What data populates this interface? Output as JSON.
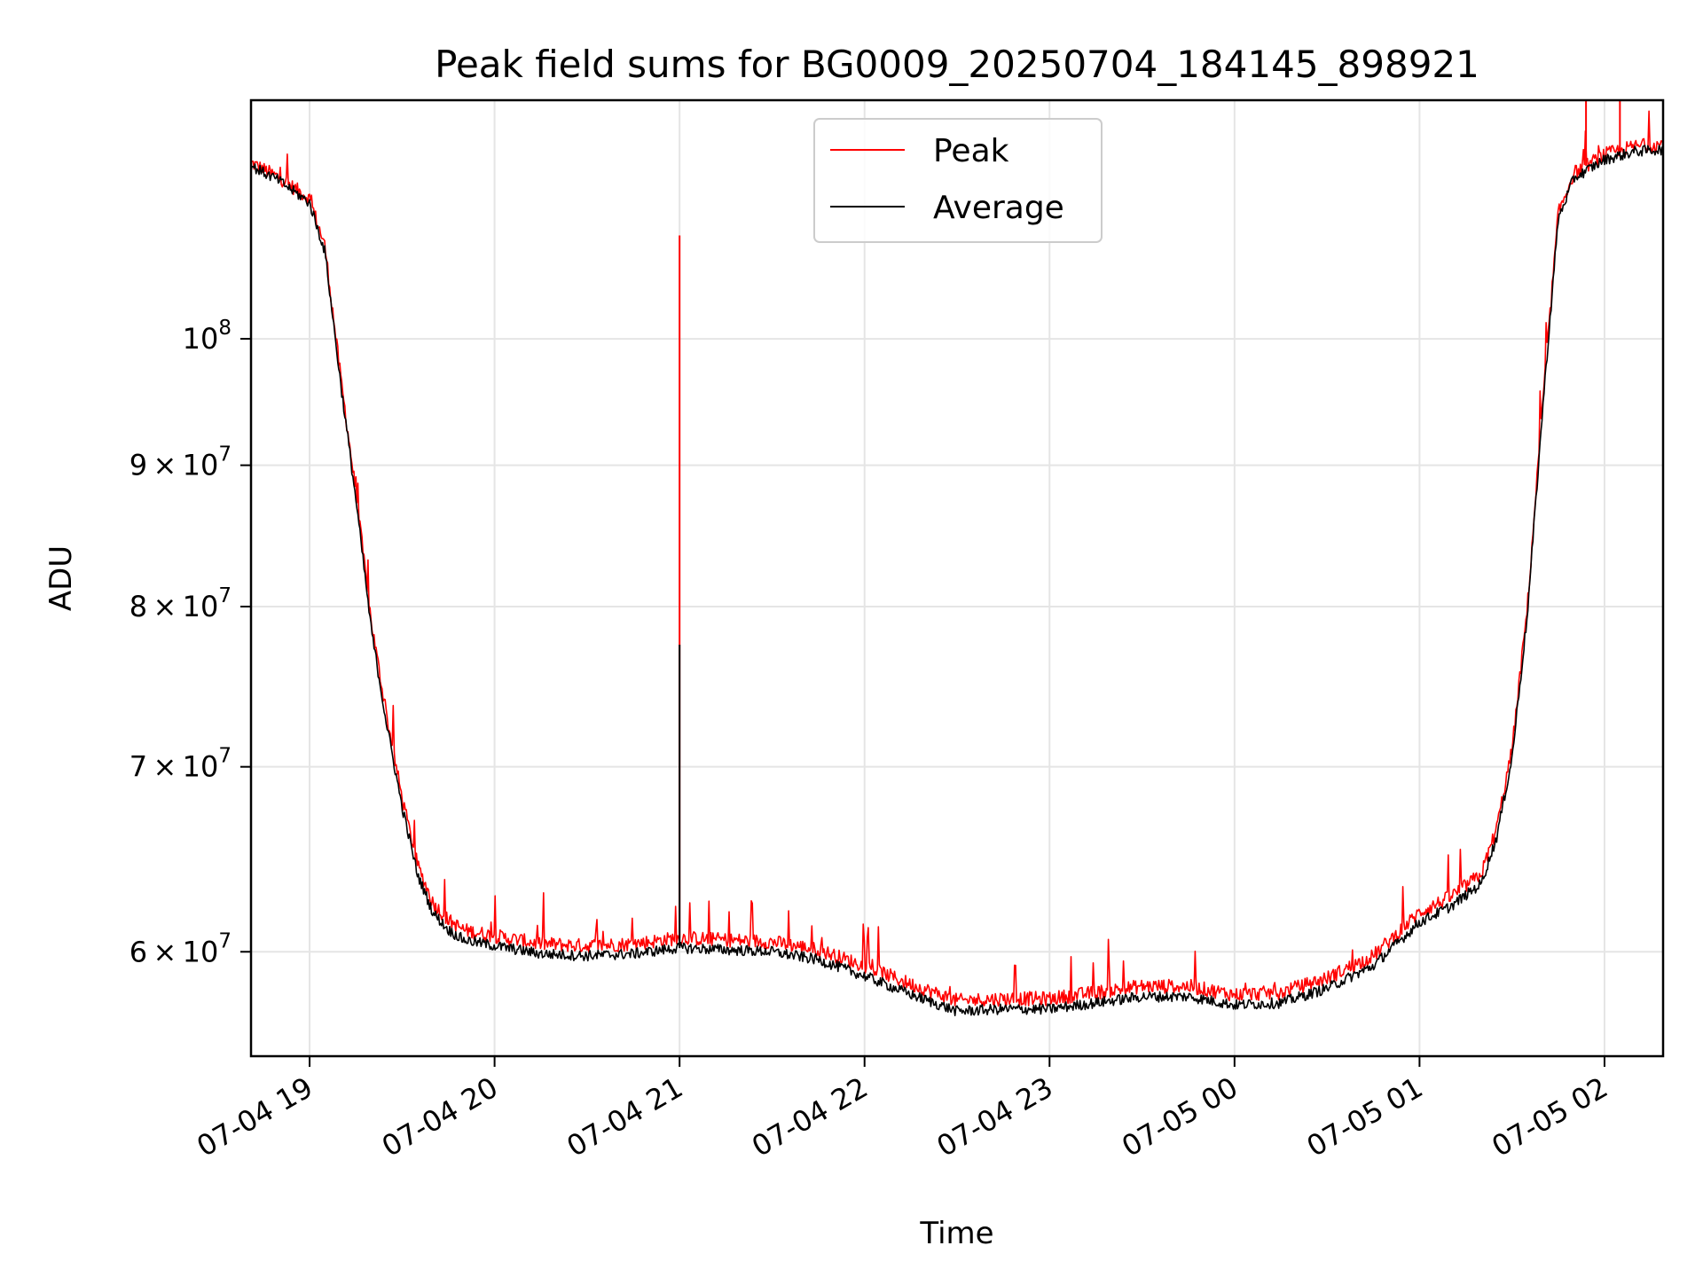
{
  "chart_data": {
    "type": "line",
    "title": "Peak field sums for BG0009_20250704_184145_898921",
    "xlabel": "Time",
    "ylabel": "ADU",
    "yscale": "log",
    "grid": true,
    "legend_position": "top-center",
    "xlim": [
      "2025-07-04 18:41",
      "2025-07-05 02:19"
    ],
    "ylim": [
      55000000,
      122000000
    ],
    "x_ticks": [
      {
        "t": "2025-07-04 19:00",
        "label": "07-04 19"
      },
      {
        "t": "2025-07-04 20:00",
        "label": "07-04 20"
      },
      {
        "t": "2025-07-04 21:00",
        "label": "07-04 21"
      },
      {
        "t": "2025-07-04 22:00",
        "label": "07-04 22"
      },
      {
        "t": "2025-07-04 23:00",
        "label": "07-04 23"
      },
      {
        "t": "2025-07-05 00:00",
        "label": "07-05 00"
      },
      {
        "t": "2025-07-05 01:00",
        "label": "07-05 01"
      },
      {
        "t": "2025-07-05 02:00",
        "label": "07-05 02"
      }
    ],
    "y_ticks": [
      {
        "value": 60000000,
        "mantissa": "6",
        "exp": "7"
      },
      {
        "value": 70000000,
        "mantissa": "7",
        "exp": "7"
      },
      {
        "value": 80000000,
        "mantissa": "8",
        "exp": "7"
      },
      {
        "value": 90000000,
        "mantissa": "9",
        "exp": "7"
      },
      {
        "value": 100000000,
        "mantissa": "",
        "exp": "8"
      }
    ],
    "series": [
      {
        "name": "Peak",
        "color": "#ff0000",
        "x": [
          "2025-07-04 18:41",
          "2025-07-04 18:50",
          "2025-07-04 19:00",
          "2025-07-04 19:05",
          "2025-07-04 19:10",
          "2025-07-04 19:15",
          "2025-07-04 19:20",
          "2025-07-04 19:25",
          "2025-07-04 19:30",
          "2025-07-04 19:35",
          "2025-07-04 19:40",
          "2025-07-04 19:45",
          "2025-07-04 19:50",
          "2025-07-04 20:00",
          "2025-07-04 20:15",
          "2025-07-04 20:30",
          "2025-07-04 20:45",
          "2025-07-04 21:00",
          "2025-07-04 21:15",
          "2025-07-04 21:30",
          "2025-07-04 21:45",
          "2025-07-04 22:00",
          "2025-07-04 22:15",
          "2025-07-04 22:30",
          "2025-07-04 22:45",
          "2025-07-04 23:00",
          "2025-07-04 23:15",
          "2025-07-04 23:30",
          "2025-07-04 23:45",
          "2025-07-05 00:00",
          "2025-07-05 00:15",
          "2025-07-05 00:30",
          "2025-07-05 00:45",
          "2025-07-05 01:00",
          "2025-07-05 01:10",
          "2025-07-05 01:20",
          "2025-07-05 01:25",
          "2025-07-05 01:30",
          "2025-07-05 01:35",
          "2025-07-05 01:40",
          "2025-07-05 01:45",
          "2025-07-05 01:50",
          "2025-07-05 02:00",
          "2025-07-05 02:10",
          "2025-07-05 02:19"
        ],
        "y": [
          115800000,
          114400000,
          112400000,
          108000000,
          97000000,
          88000000,
          79000000,
          73000000,
          68200000,
          64500000,
          62500000,
          61600000,
          61100000,
          60800000,
          60400000,
          60300000,
          60400000,
          60700000,
          60600000,
          60500000,
          60100000,
          59300000,
          58400000,
          57600000,
          57700000,
          57700000,
          58000000,
          58300000,
          58300000,
          57900000,
          58000000,
          58700000,
          59800000,
          62000000,
          62800000,
          64000000,
          66500000,
          71000000,
          80000000,
          95000000,
          111000000,
          114800000,
          116600000,
          117400000,
          117600000
        ]
      },
      {
        "name": "Average",
        "color": "#000000",
        "x": [
          "2025-07-04 18:41",
          "2025-07-04 18:50",
          "2025-07-04 19:00",
          "2025-07-04 19:05",
          "2025-07-04 19:10",
          "2025-07-04 19:15",
          "2025-07-04 19:20",
          "2025-07-04 19:25",
          "2025-07-04 19:30",
          "2025-07-04 19:35",
          "2025-07-04 19:40",
          "2025-07-04 19:45",
          "2025-07-04 19:50",
          "2025-07-04 20:00",
          "2025-07-04 20:15",
          "2025-07-04 20:30",
          "2025-07-04 20:45",
          "2025-07-04 21:00",
          "2025-07-04 21:15",
          "2025-07-04 21:30",
          "2025-07-04 21:45",
          "2025-07-04 22:00",
          "2025-07-04 22:15",
          "2025-07-04 22:30",
          "2025-07-04 22:45",
          "2025-07-04 23:00",
          "2025-07-04 23:15",
          "2025-07-04 23:30",
          "2025-07-04 23:45",
          "2025-07-05 00:00",
          "2025-07-05 00:15",
          "2025-07-05 00:30",
          "2025-07-05 00:45",
          "2025-07-05 01:00",
          "2025-07-05 01:10",
          "2025-07-05 01:20",
          "2025-07-05 01:25",
          "2025-07-05 01:30",
          "2025-07-05 01:35",
          "2025-07-05 01:40",
          "2025-07-05 01:45",
          "2025-07-05 01:50",
          "2025-07-05 02:00",
          "2025-07-05 02:10",
          "2025-07-05 02:19"
        ],
        "y": [
          115500000,
          114100000,
          112000000,
          107500000,
          96500000,
          87500000,
          78500000,
          72500000,
          67700000,
          64000000,
          62000000,
          61100000,
          60600000,
          60300000,
          59900000,
          59800000,
          59900000,
          60200000,
          60100000,
          60000000,
          59600000,
          58800000,
          57900000,
          57100000,
          57200000,
          57200000,
          57500000,
          57800000,
          57800000,
          57400000,
          57500000,
          58200000,
          59300000,
          61500000,
          62300000,
          63500000,
          66000000,
          70500000,
          79500000,
          94500000,
          110500000,
          114300000,
          116100000,
          116900000,
          117100000
        ]
      }
    ],
    "spikes": [
      {
        "series": "Peak",
        "t": "2025-07-04 21:00",
        "y": 109000000
      },
      {
        "series": "Average",
        "t": "2025-07-04 21:00",
        "y": 77500000
      },
      {
        "series": "Peak",
        "t": "2025-07-05 01:54",
        "y": 122000000
      },
      {
        "series": "Peak",
        "t": "2025-07-05 02:05",
        "y": 122000000
      }
    ]
  }
}
